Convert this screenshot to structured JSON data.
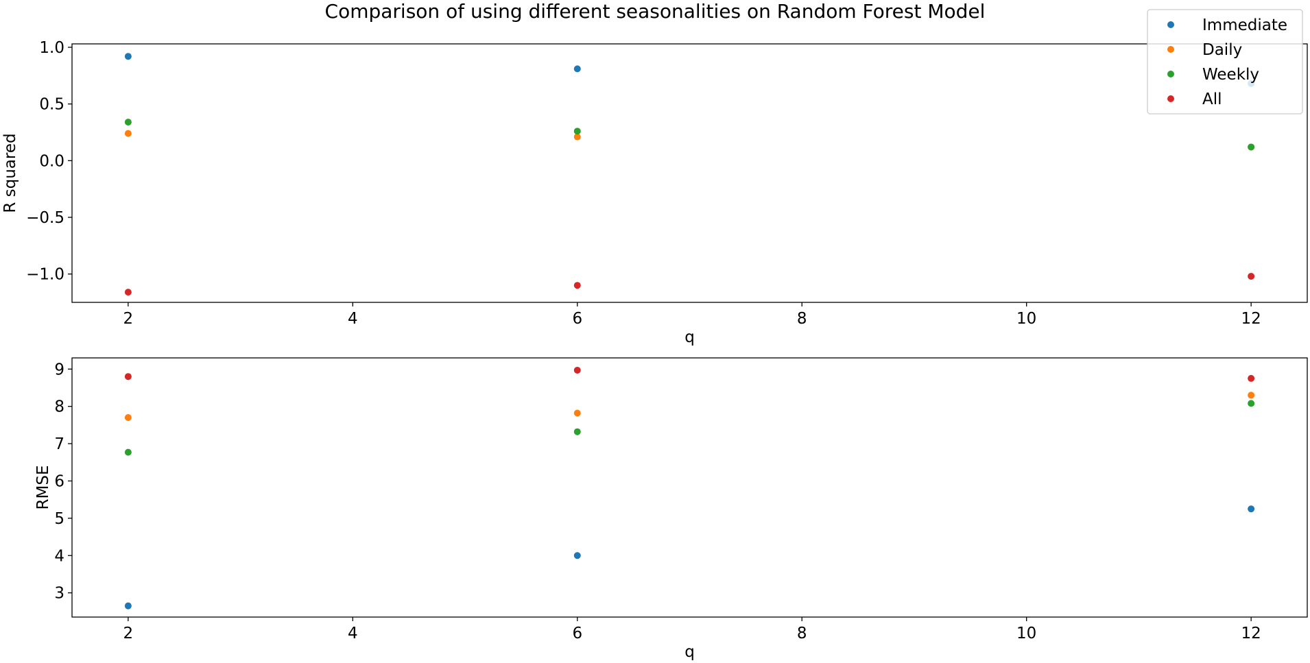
{
  "figure": {
    "title": "Comparison of using different seasonalities on Random Forest Model"
  },
  "legend": {
    "placement": "upper-right",
    "entries": [
      {
        "name": "Immediate",
        "color": "#1f77b4"
      },
      {
        "name": "Daily",
        "color": "#ff7f0e"
      },
      {
        "name": "Weekly",
        "color": "#2ca02c"
      },
      {
        "name": "All",
        "color": "#d62728"
      }
    ]
  },
  "chart_data": [
    {
      "type": "scatter",
      "title": "Comparison of using different seasonalities on Random Forest Model",
      "xlabel": "q",
      "ylabel": "R squared",
      "x": [
        2,
        6,
        12
      ],
      "xlim": [
        1.5,
        12.5
      ],
      "xticks": [
        2,
        4,
        6,
        8,
        10,
        12
      ],
      "ylim": [
        -1.25,
        1.03
      ],
      "yticks": [
        1.0,
        0.5,
        0.0,
        -0.5,
        -1.0
      ],
      "ytick_labels": [
        "1.0",
        "0.5",
        "0.0",
        "−0.5",
        "−1.0"
      ],
      "grid": false,
      "series": [
        {
          "name": "Immediate",
          "color": "#1f77b4",
          "values": [
            0.92,
            0.81,
            0.68
          ]
        },
        {
          "name": "Daily",
          "color": "#ff7f0e",
          "values": [
            0.24,
            0.21,
            0.12
          ]
        },
        {
          "name": "Weekly",
          "color": "#2ca02c",
          "values": [
            0.34,
            0.26,
            0.12
          ]
        },
        {
          "name": "All",
          "color": "#d62728",
          "values": [
            -1.16,
            -1.1,
            -1.02
          ]
        }
      ]
    },
    {
      "type": "scatter",
      "xlabel": "q",
      "ylabel": "RMSE",
      "x": [
        2,
        6,
        12
      ],
      "xlim": [
        1.5,
        12.5
      ],
      "xticks": [
        2,
        4,
        6,
        8,
        10,
        12
      ],
      "ylim": [
        2.35,
        9.3
      ],
      "yticks": [
        9,
        8,
        7,
        6,
        5,
        4,
        3
      ],
      "ytick_labels": [
        "9",
        "8",
        "7",
        "6",
        "5",
        "4",
        "3"
      ],
      "grid": false,
      "series": [
        {
          "name": "Immediate",
          "color": "#1f77b4",
          "values": [
            2.65,
            4.0,
            5.25
          ]
        },
        {
          "name": "Daily",
          "color": "#ff7f0e",
          "values": [
            7.7,
            7.82,
            8.3
          ]
        },
        {
          "name": "Weekly",
          "color": "#2ca02c",
          "values": [
            6.77,
            7.32,
            8.08
          ]
        },
        {
          "name": "All",
          "color": "#d62728",
          "values": [
            8.8,
            8.97,
            8.75
          ]
        }
      ]
    }
  ]
}
